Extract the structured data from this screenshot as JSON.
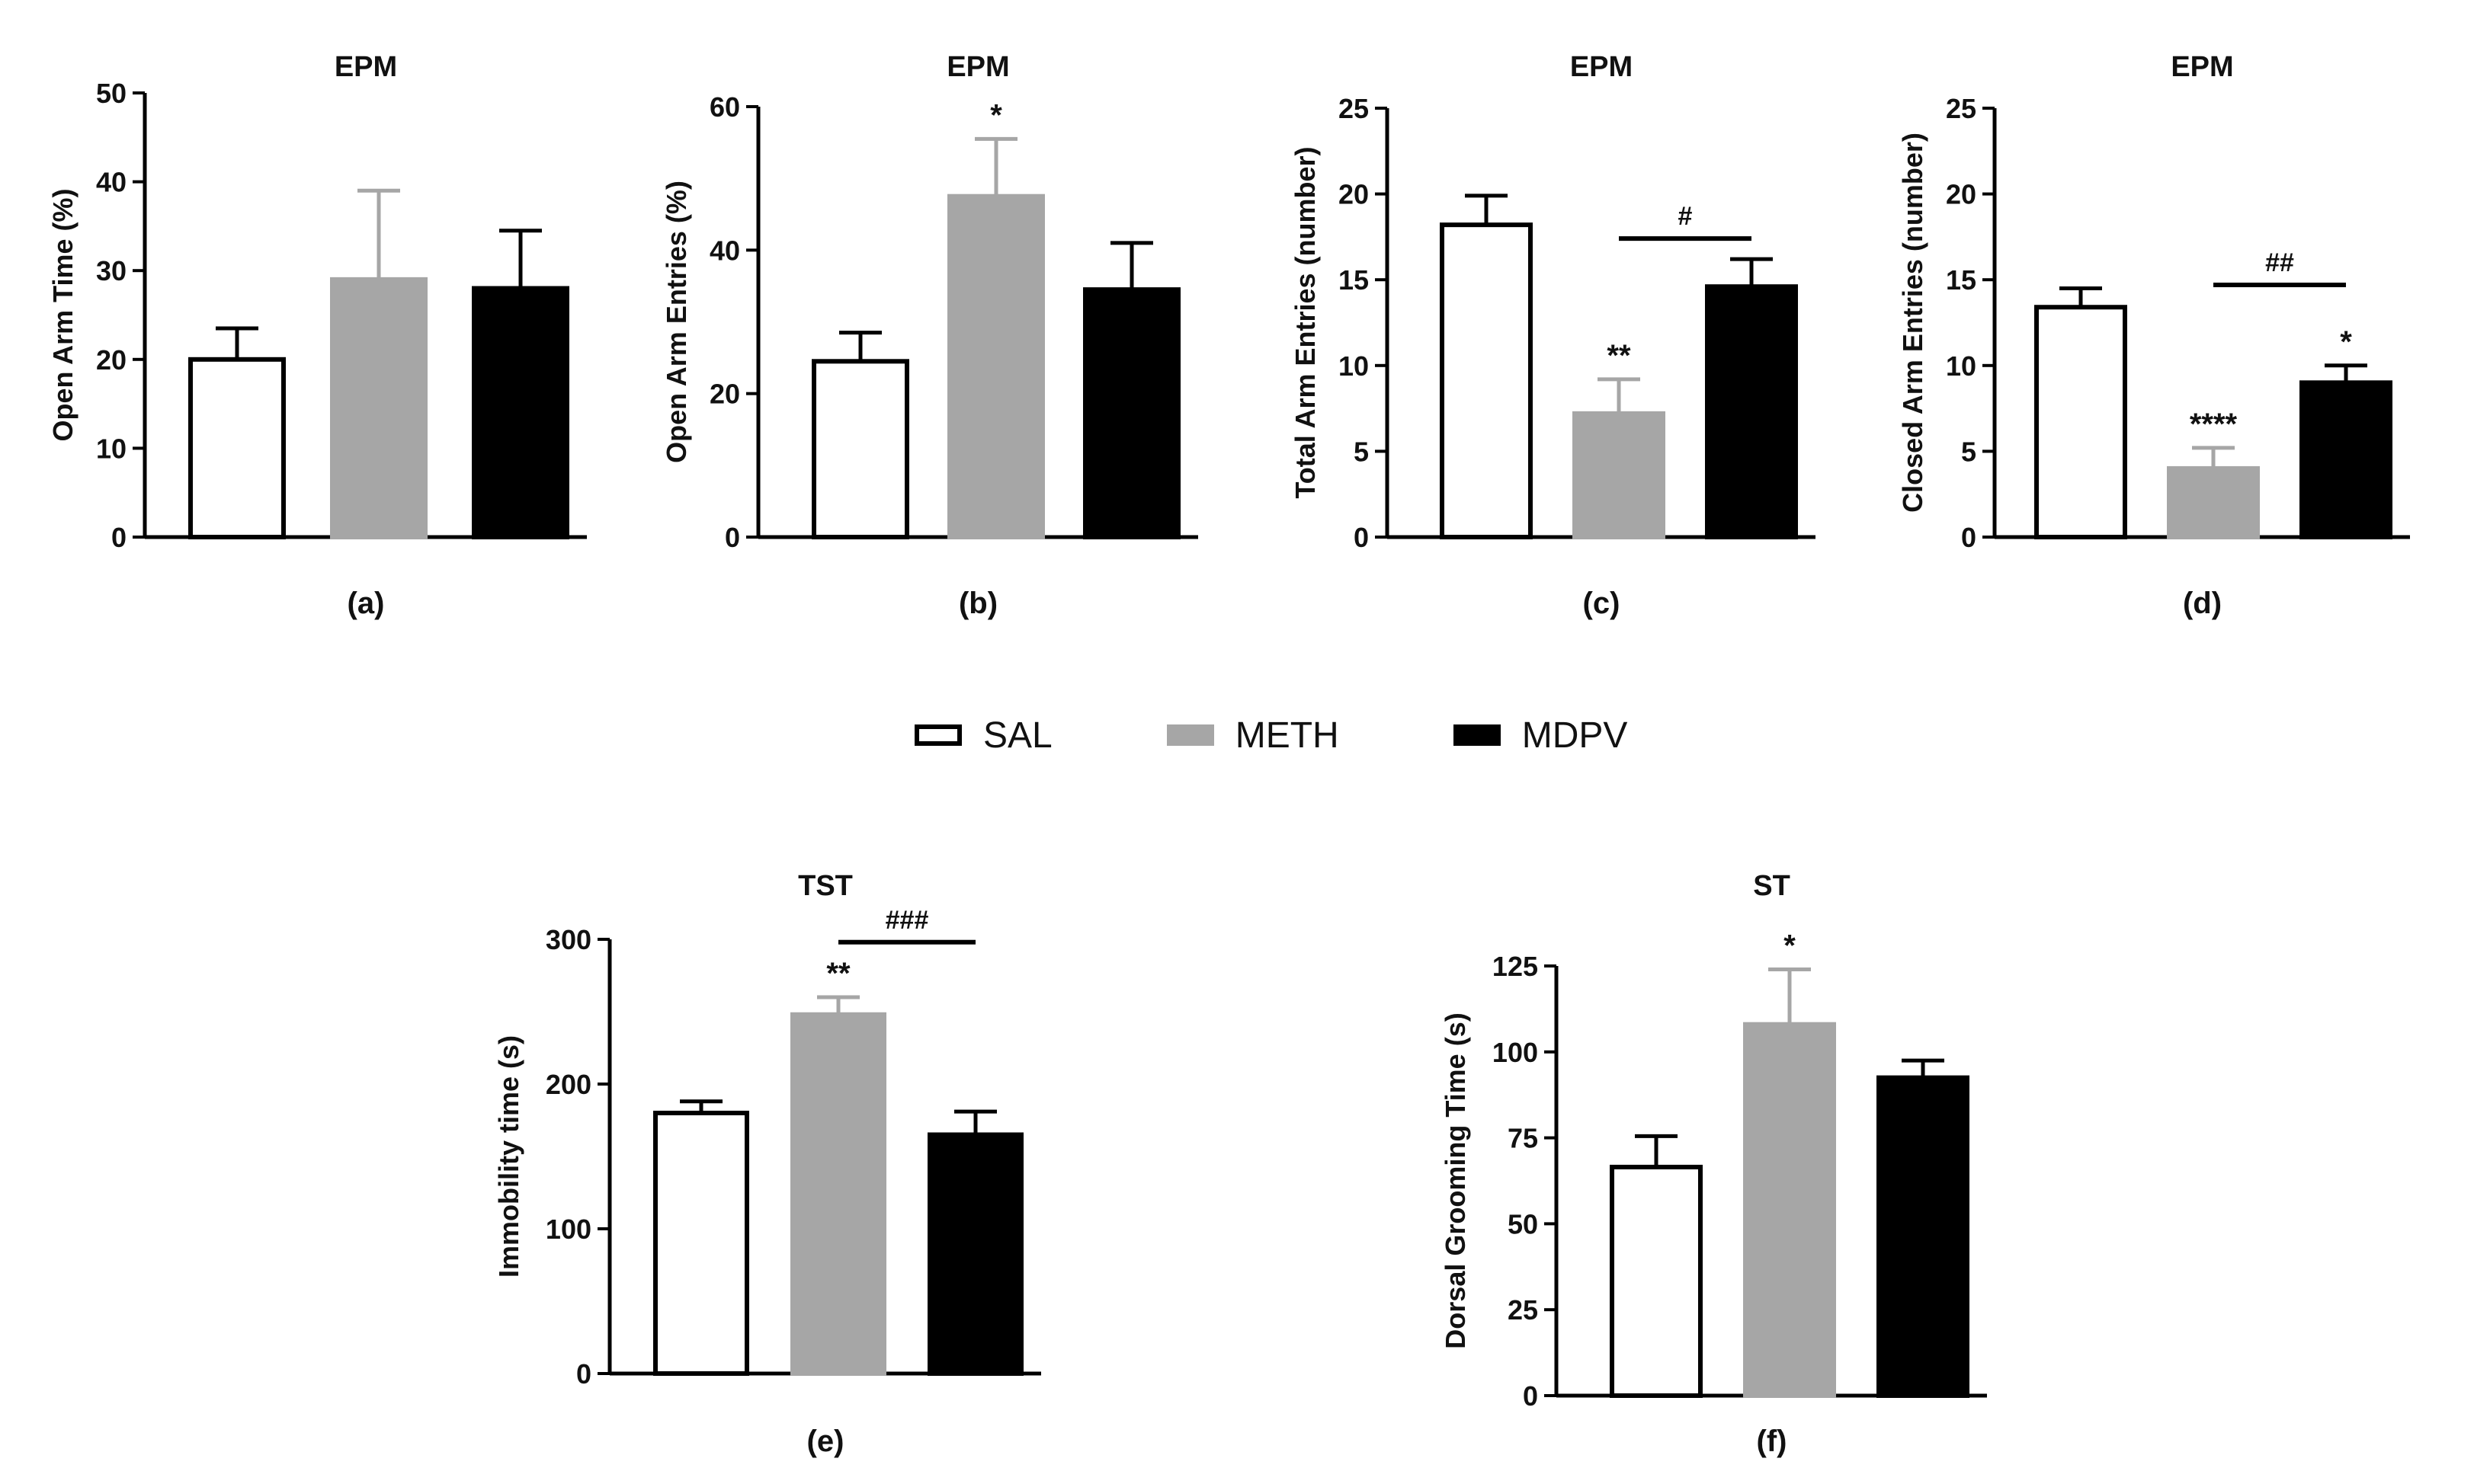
{
  "colors": {
    "SAL": {
      "fill": "#ffffff",
      "stroke": "#000000"
    },
    "METH": {
      "fill": "#a6a6a6",
      "stroke": "#a6a6a6"
    },
    "MDPV": {
      "fill": "#000000",
      "stroke": "#000000"
    },
    "axis": "#000000"
  },
  "legend": [
    {
      "key": "SAL",
      "label": "SAL"
    },
    {
      "key": "METH",
      "label": "METH"
    },
    {
      "key": "MDPV",
      "label": "MDPV"
    }
  ],
  "chart_data": [
    {
      "panel": "(a)",
      "type": "bar",
      "title": "EPM",
      "xlabel": "(a)",
      "ylabel": "Open Arm Time (%)",
      "ylim": [
        0,
        50
      ],
      "yticks": [
        0,
        10,
        20,
        30,
        40,
        50
      ],
      "ytick_labels": [
        "0",
        "10",
        "20",
        "30",
        "40",
        "50"
      ],
      "categories": [
        "SAL",
        "METH",
        "MDPV"
      ],
      "values": [
        20,
        29,
        28
      ],
      "errors": [
        3.5,
        10,
        6.5
      ],
      "annotations": [
        "",
        "",
        ""
      ],
      "brackets": []
    },
    {
      "panel": "(b)",
      "type": "bar",
      "title": "EPM",
      "xlabel": "(b)",
      "ylabel": "Open Arm Entries (%)",
      "ylim": [
        0,
        60
      ],
      "yticks": [
        0,
        20,
        40,
        60
      ],
      "ytick_labels": [
        "0",
        "20",
        "40",
        "60"
      ],
      "categories": [
        "SAL",
        "METH",
        "MDPV"
      ],
      "values": [
        24.5,
        47.5,
        34.5
      ],
      "errors": [
        4,
        8,
        6.5
      ],
      "annotations": [
        "",
        "*",
        ""
      ],
      "brackets": []
    },
    {
      "panel": "(c)",
      "type": "bar",
      "title": "EPM",
      "xlabel": "(c)",
      "ylabel": "Total Arm Entries (number)",
      "ylim": [
        0,
        25
      ],
      "yticks": [
        0,
        5,
        10,
        15,
        20,
        25
      ],
      "ytick_labels": [
        "0",
        "5",
        "10",
        "15",
        "20",
        "25"
      ],
      "categories": [
        "SAL",
        "METH",
        "MDPV"
      ],
      "values": [
        18.2,
        7.2,
        14.6
      ],
      "errors": [
        1.7,
        2,
        1.6
      ],
      "annotations": [
        "",
        "**",
        ""
      ],
      "brackets": [
        {
          "from": 1,
          "to": 2,
          "y": 17.4,
          "label": "#"
        }
      ]
    },
    {
      "panel": "(d)",
      "type": "bar",
      "title": "EPM",
      "xlabel": "(d)",
      "ylabel": "Closed Arm Entries (number)",
      "ylim": [
        0,
        25
      ],
      "yticks": [
        0,
        5,
        10,
        15,
        20,
        25
      ],
      "ytick_labels": [
        "0",
        "5",
        "10",
        "15",
        "20",
        "25"
      ],
      "categories": [
        "SAL",
        "METH",
        "MDPV"
      ],
      "values": [
        13.4,
        4,
        9
      ],
      "errors": [
        1.1,
        1.2,
        1
      ],
      "annotations": [
        "",
        "****",
        "*"
      ],
      "brackets": [
        {
          "from": 1,
          "to": 2,
          "y": 14.7,
          "label": "##"
        }
      ]
    },
    {
      "panel": "(e)",
      "type": "bar",
      "title": "TST",
      "xlabel": "(e)",
      "ylabel": "Immobility time (s)",
      "ylim": [
        0,
        300
      ],
      "yticks": [
        0,
        100,
        200,
        300
      ],
      "ytick_labels": [
        "0",
        "100",
        "200",
        "300"
      ],
      "categories": [
        "SAL",
        "METH",
        "MDPV"
      ],
      "values": [
        180,
        248,
        165
      ],
      "errors": [
        8,
        12,
        16
      ],
      "annotations": [
        "",
        "**",
        ""
      ],
      "brackets": [
        {
          "from": 1,
          "to": 2,
          "y": 298,
          "label": "###"
        }
      ]
    },
    {
      "panel": "(f)",
      "type": "bar",
      "title": "ST",
      "xlabel": "(f)",
      "ylabel": "Dorsal Grooming Time (s)",
      "ylim": [
        0,
        125
      ],
      "yticks": [
        0,
        25,
        50,
        75,
        100,
        125
      ],
      "ytick_labels": [
        "0",
        "25",
        "50",
        "75",
        "100",
        "125"
      ],
      "categories": [
        "SAL",
        "METH",
        "MDPV"
      ],
      "values": [
        66.5,
        108,
        92.5
      ],
      "errors": [
        9,
        16,
        5
      ],
      "annotations": [
        "",
        "*",
        ""
      ],
      "brackets": []
    }
  ]
}
